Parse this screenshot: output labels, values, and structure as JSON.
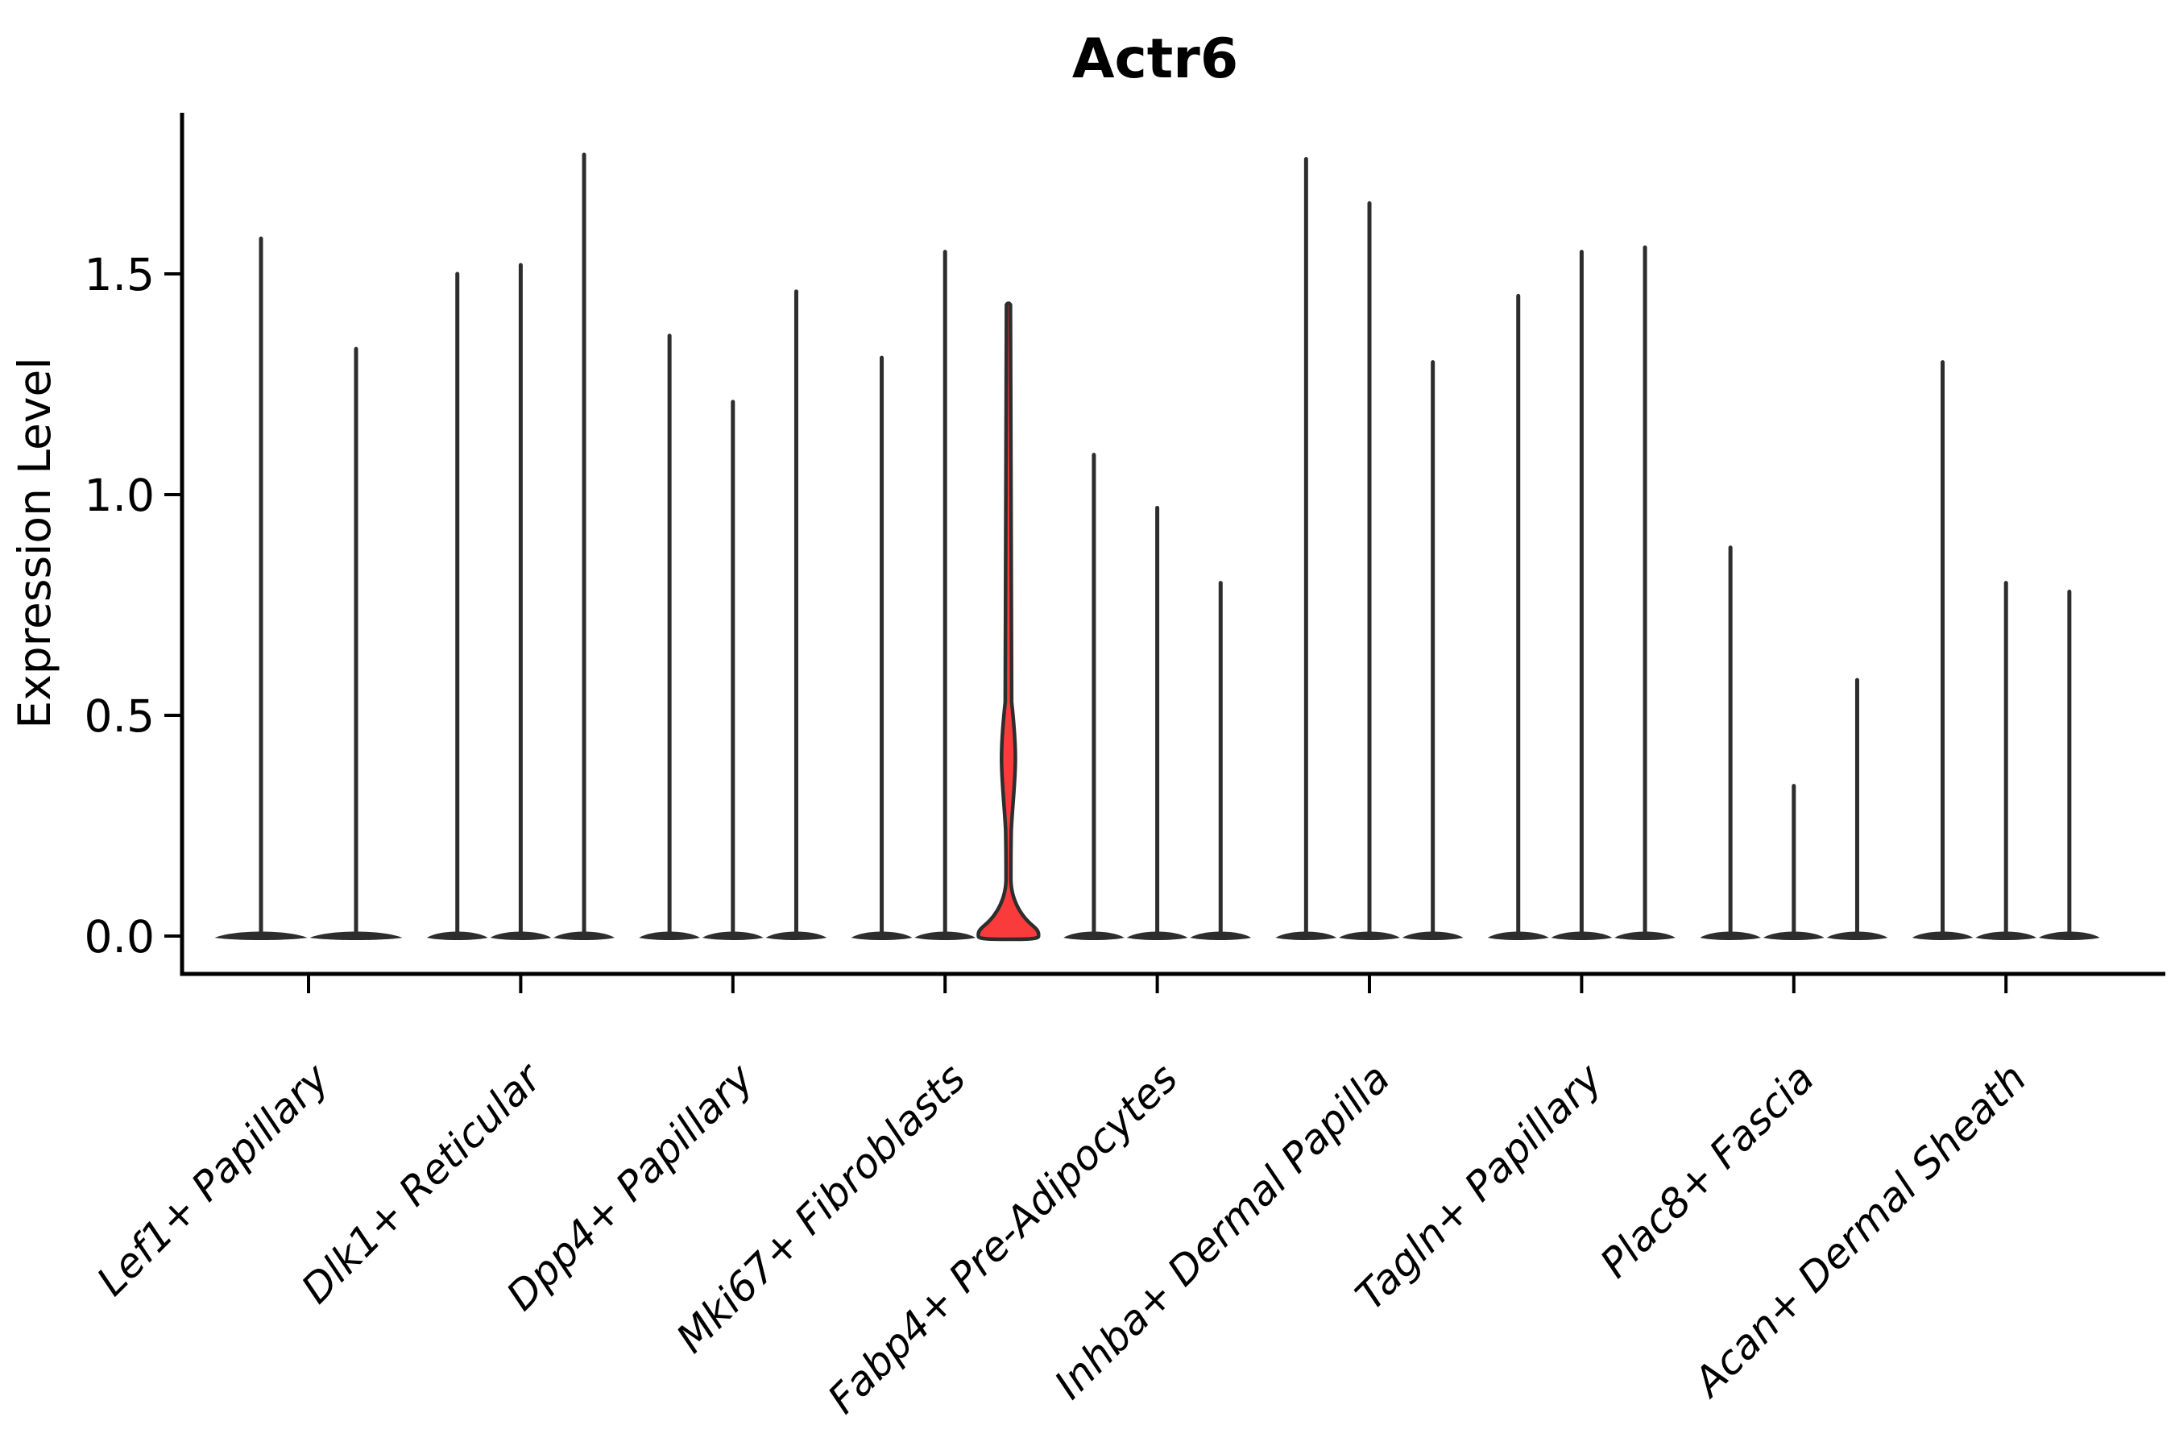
{
  "chart_data": {
    "type": "violin",
    "title": "Actr6",
    "ylabel": "Expression Level",
    "xlabel": "",
    "grid": false,
    "legend": "none",
    "ylim": [
      -0.086,
      1.865
    ],
    "ytick_labels": [
      "0.0",
      "0.5",
      "1.0",
      "1.5"
    ],
    "ytick_values": [
      0.0,
      0.5,
      1.0,
      1.5
    ],
    "styles": {
      "violin_color": "#2d2d2d",
      "highlight_fill": "#fa3b3b",
      "axis_color": "#000000",
      "text_color": "#000000",
      "background": "#ffffff"
    },
    "categories": [
      {
        "label": "Lef1+ Papillary",
        "violins": [
          {
            "max": 1.58
          },
          {
            "max": 1.33
          }
        ]
      },
      {
        "label": "Dlk1+ Reticular",
        "violins": [
          {
            "max": 1.5
          },
          {
            "max": 1.52
          },
          {
            "max": 1.77
          }
        ]
      },
      {
        "label": "Dpp4+ Papillary",
        "violins": [
          {
            "max": 1.36
          },
          {
            "max": 1.21
          },
          {
            "max": 1.46
          }
        ]
      },
      {
        "label": "Mki67+ Fibroblasts",
        "violins": [
          {
            "max": 1.31
          },
          {
            "max": 1.55
          },
          {
            "max": 1.43,
            "highlighted": true,
            "bulge": {
              "top": 0.53,
              "peak": 0.39,
              "bottom": 0.24
            },
            "base_peak": 0.13
          }
        ]
      },
      {
        "label": "Fabp4+ Pre-Adipocytes",
        "violins": [
          {
            "max": 1.09
          },
          {
            "max": 0.97
          },
          {
            "max": 0.8
          }
        ]
      },
      {
        "label": "Inhba+ Dermal Papilla",
        "violins": [
          {
            "max": 1.76
          },
          {
            "max": 1.66
          },
          {
            "max": 1.3
          }
        ]
      },
      {
        "label": "Tagln+ Papillary",
        "violins": [
          {
            "max": 1.45
          },
          {
            "max": 1.55
          },
          {
            "max": 1.56
          }
        ]
      },
      {
        "label": "Plac8+ Fascia",
        "violins": [
          {
            "max": 0.88
          },
          {
            "max": 0.34
          },
          {
            "max": 0.58
          }
        ]
      },
      {
        "label": "Acan+ Dermal Sheath",
        "violins": [
          {
            "max": 1.3
          },
          {
            "max": 0.8
          },
          {
            "max": 0.78
          }
        ]
      }
    ]
  }
}
